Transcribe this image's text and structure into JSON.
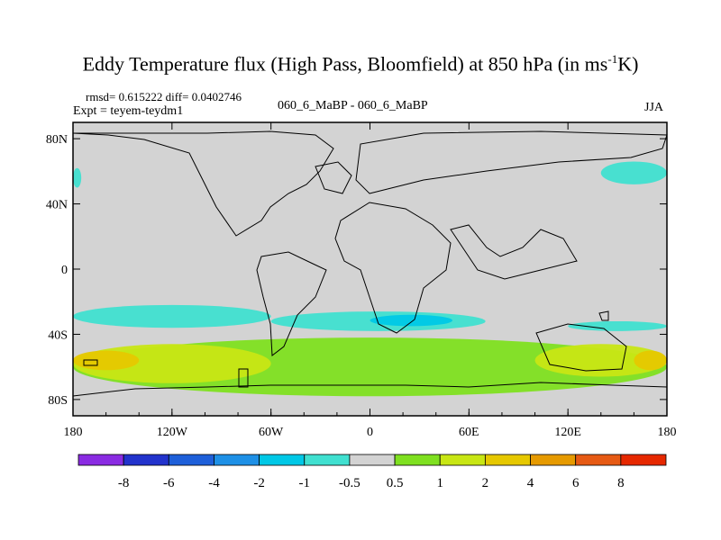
{
  "title": {
    "main": "Eddy Temperature flux (High Pass, Bloomfield) at 850 hPa (in ms",
    "sup": "-1",
    "tail": "K)"
  },
  "stats_line": "rmsd= 0.615222 diff= 0.0402746",
  "expt_line": "Expt = teyem-teydm1",
  "case_line": "060_6_MaBP - 060_6_MaBP",
  "season": "JJA",
  "chart_data": {
    "type": "heatmap",
    "projection": "cylindrical equidistant",
    "x_range": [
      -180,
      180
    ],
    "y_range": [
      -90,
      90
    ],
    "x_ticks": [
      {
        "value": -180,
        "label": "180"
      },
      {
        "value": -120,
        "label": "120W"
      },
      {
        "value": -60,
        "label": "60W"
      },
      {
        "value": 0,
        "label": "0"
      },
      {
        "value": 60,
        "label": "60E"
      },
      {
        "value": 120,
        "label": "120E"
      },
      {
        "value": 180,
        "label": "180"
      }
    ],
    "y_ticks": [
      {
        "value": 80,
        "label": "80N"
      },
      {
        "value": 40,
        "label": "40N"
      },
      {
        "value": 0,
        "label": "0"
      },
      {
        "value": -40,
        "label": "40S"
      },
      {
        "value": -80,
        "label": "80S"
      }
    ],
    "colorbar": {
      "levels": [
        "-8",
        "-6",
        "-4",
        "-2",
        "-1",
        "-0.5",
        "0.5",
        "1",
        "2",
        "4",
        "6",
        "8"
      ],
      "colors": [
        "#8a2be2",
        "#2233cc",
        "#1e5fd9",
        "#1e90e6",
        "#00c8e6",
        "#40e0d0",
        "#d3d3d3",
        "#7fe020",
        "#c8e614",
        "#e6c800",
        "#e69a00",
        "#e65a14",
        "#e62800"
      ]
    },
    "regions": [
      {
        "label": "-0.5 to -1 band near 40S, Pacific",
        "class": 5,
        "lon_range": [
          -180,
          -60
        ],
        "lat_range": [
          -36,
          -22
        ]
      },
      {
        "label": "-0.5 to -1 band near 40S, Atlantic/Indian",
        "class": 5,
        "lon_range": [
          -60,
          70
        ],
        "lat_range": [
          -38,
          -26
        ]
      },
      {
        "label": "-1 to -2 core south of Africa",
        "class": 4,
        "lon_range": [
          0,
          50
        ],
        "lat_range": [
          -35,
          -28
        ]
      },
      {
        "label": "-0.5 to -1 North Pacific west edge",
        "class": 5,
        "lon_range": [
          -180,
          -175
        ],
        "lat_range": [
          50,
          62
        ]
      },
      {
        "label": "-0.5 to -1 North Pacific east edge",
        "class": 5,
        "lon_range": [
          140,
          180
        ],
        "lat_range": [
          52,
          66
        ]
      },
      {
        "label": "-0.5 to -1 South Pacific 40S east",
        "class": 5,
        "lon_range": [
          120,
          180
        ],
        "lat_range": [
          -38,
          -32
        ]
      },
      {
        "label": "0.5 to 1 Southern Ocean belt",
        "class": 7,
        "lon_range": [
          -180,
          180
        ],
        "lat_range": [
          -78,
          -42
        ]
      },
      {
        "label": "1 to 2 Southern Ocean belt",
        "class": 8,
        "lon_range": [
          -180,
          -60
        ],
        "lat_range": [
          -70,
          -46
        ]
      },
      {
        "label": "2 to 4 South Pacific max",
        "class": 9,
        "lon_range": [
          -180,
          -140
        ],
        "lat_range": [
          -62,
          -50
        ]
      },
      {
        "label": "1 to 2 South Indian/Pacific",
        "class": 8,
        "lon_range": [
          100,
          180
        ],
        "lat_range": [
          -66,
          -46
        ]
      },
      {
        "label": "2 to 4 near dateline",
        "class": 9,
        "lon_range": [
          160,
          180
        ],
        "lat_range": [
          -62,
          -50
        ]
      }
    ]
  }
}
